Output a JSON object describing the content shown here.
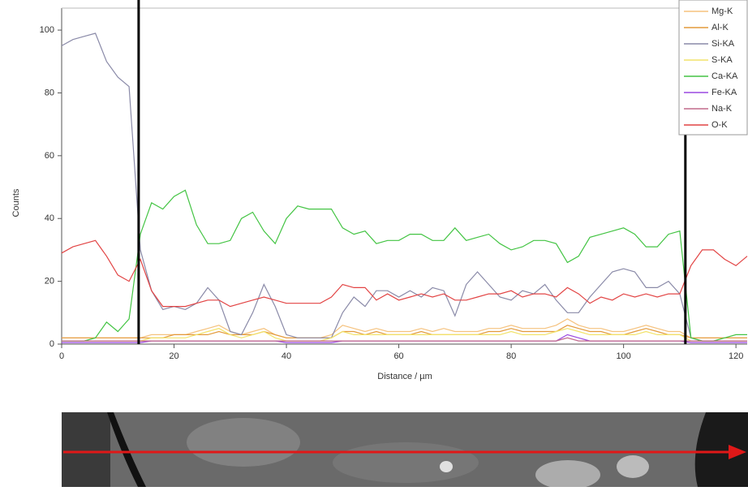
{
  "chart_data": {
    "type": "line",
    "xlabel": "Distance / µm",
    "ylabel": "Counts",
    "x": [
      0,
      2,
      4,
      6,
      8,
      10,
      12,
      14,
      16,
      18,
      20,
      22,
      24,
      26,
      28,
      30,
      32,
      34,
      36,
      38,
      40,
      42,
      44,
      46,
      48,
      50,
      52,
      54,
      56,
      58,
      60,
      62,
      64,
      66,
      68,
      70,
      72,
      74,
      76,
      78,
      80,
      82,
      84,
      86,
      88,
      90,
      92,
      94,
      96,
      98,
      100,
      102,
      104,
      106,
      108,
      110,
      112,
      114,
      116,
      118,
      120,
      122
    ],
    "xlim": [
      0,
      122
    ],
    "xticks": [
      0,
      20,
      40,
      60,
      80,
      100,
      120
    ],
    "ylim": [
      0,
      107
    ],
    "yticks": [
      0,
      20,
      40,
      60,
      80,
      100
    ],
    "cursors": [
      13.7,
      111
    ],
    "legend": "upper right",
    "series": [
      {
        "name": "Mg-K",
        "color": "#f5c27e",
        "values": [
          2,
          2,
          2,
          2,
          2,
          2,
          2,
          2,
          3,
          3,
          3,
          3,
          4,
          5,
          6,
          4,
          3,
          4,
          5,
          3,
          2,
          2,
          2,
          2,
          3,
          6,
          5,
          4,
          5,
          4,
          4,
          4,
          5,
          4,
          5,
          4,
          4,
          4,
          5,
          5,
          6,
          5,
          5,
          5,
          6,
          8,
          6,
          5,
          5,
          4,
          4,
          5,
          6,
          5,
          4,
          4,
          2,
          2,
          2,
          2,
          2,
          2
        ]
      },
      {
        "name": "Al-K",
        "color": "#e39a3c",
        "values": [
          2,
          2,
          2,
          2,
          2,
          2,
          2,
          2,
          2,
          2,
          3,
          3,
          3,
          3,
          4,
          3,
          3,
          3,
          4,
          3,
          2,
          2,
          2,
          2,
          2,
          4,
          4,
          3,
          4,
          3,
          3,
          3,
          4,
          3,
          3,
          3,
          3,
          3,
          4,
          4,
          5,
          4,
          4,
          4,
          4,
          6,
          5,
          4,
          4,
          3,
          3,
          4,
          5,
          4,
          3,
          3,
          2,
          2,
          2,
          2,
          2,
          2
        ]
      },
      {
        "name": "Si-KA",
        "color": "#8a8aa8",
        "values": [
          95,
          97,
          98,
          99,
          90,
          85,
          82,
          30,
          17,
          11,
          12,
          11,
          13,
          18,
          14,
          4,
          3,
          10,
          19,
          12,
          3,
          2,
          2,
          2,
          2,
          10,
          15,
          12,
          17,
          17,
          15,
          17,
          15,
          18,
          17,
          9,
          19,
          23,
          19,
          15,
          14,
          17,
          16,
          19,
          14,
          10,
          10,
          15,
          19,
          23,
          24,
          23,
          18,
          18,
          20,
          16,
          2,
          1,
          1,
          1,
          1,
          1
        ]
      },
      {
        "name": "S-KA",
        "color": "#f2e36a",
        "values": [
          1,
          1,
          1,
          1,
          1,
          1,
          1,
          1,
          2,
          2,
          2,
          2,
          3,
          4,
          5,
          3,
          2,
          3,
          4,
          2,
          1,
          1,
          1,
          1,
          2,
          4,
          3,
          3,
          3,
          3,
          3,
          3,
          3,
          3,
          3,
          3,
          3,
          3,
          3,
          3,
          4,
          3,
          3,
          3,
          4,
          5,
          4,
          3,
          3,
          3,
          3,
          3,
          4,
          3,
          3,
          3,
          1,
          1,
          1,
          1,
          1,
          1
        ]
      },
      {
        "name": "Ca-KA",
        "color": "#43c443",
        "values": [
          1,
          1,
          1,
          2,
          7,
          4,
          8,
          35,
          45,
          43,
          47,
          49,
          38,
          32,
          32,
          33,
          40,
          42,
          36,
          32,
          40,
          44,
          43,
          43,
          43,
          37,
          35,
          36,
          32,
          33,
          33,
          35,
          35,
          33,
          33,
          37,
          33,
          34,
          35,
          32,
          30,
          31,
          33,
          33,
          32,
          26,
          28,
          34,
          35,
          36,
          37,
          35,
          31,
          31,
          35,
          36,
          2,
          1,
          1,
          2,
          3,
          3
        ]
      },
      {
        "name": "Fe-KA",
        "color": "#9a48e0",
        "values": [
          0.5,
          0.5,
          0.5,
          0.5,
          0.5,
          0.5,
          0.5,
          0.5,
          1,
          1,
          1,
          1,
          1,
          1,
          1,
          1,
          1,
          1,
          1,
          1,
          0.5,
          0.5,
          0.5,
          0.5,
          0.5,
          1,
          1,
          1,
          1,
          1,
          1,
          1,
          1,
          1,
          1,
          1,
          1,
          1,
          1,
          1,
          1,
          1,
          1,
          1,
          1,
          3,
          2,
          1,
          1,
          1,
          1,
          1,
          1,
          1,
          1,
          1,
          0.5,
          0.5,
          0.5,
          0.5,
          0.5,
          0.5
        ]
      },
      {
        "name": "Na-K",
        "color": "#c26a8c",
        "values": [
          1,
          1,
          1,
          1,
          1,
          1,
          1,
          1,
          1,
          1,
          1,
          1,
          1,
          1,
          1,
          1,
          1,
          1,
          1,
          1,
          1,
          1,
          1,
          1,
          1,
          1,
          1,
          1,
          1,
          1,
          1,
          1,
          1,
          1,
          1,
          1,
          1,
          1,
          1,
          1,
          1,
          1,
          1,
          1,
          1,
          2,
          1,
          1,
          1,
          1,
          1,
          1,
          1,
          1,
          1,
          1,
          1,
          1,
          1,
          1,
          1,
          1
        ]
      },
      {
        "name": "O-K",
        "color": "#e24444",
        "values": [
          29,
          31,
          32,
          33,
          28,
          22,
          20,
          27,
          17,
          12,
          12,
          12,
          13,
          14,
          14,
          12,
          13,
          14,
          15,
          14,
          13,
          13,
          13,
          13,
          15,
          19,
          18,
          18,
          14,
          16,
          14,
          15,
          16,
          15,
          16,
          14,
          14,
          15,
          16,
          16,
          17,
          15,
          16,
          16,
          15,
          18,
          16,
          13,
          15,
          14,
          16,
          15,
          16,
          15,
          16,
          16,
          25,
          30,
          30,
          27,
          25,
          28
        ]
      }
    ]
  }
}
